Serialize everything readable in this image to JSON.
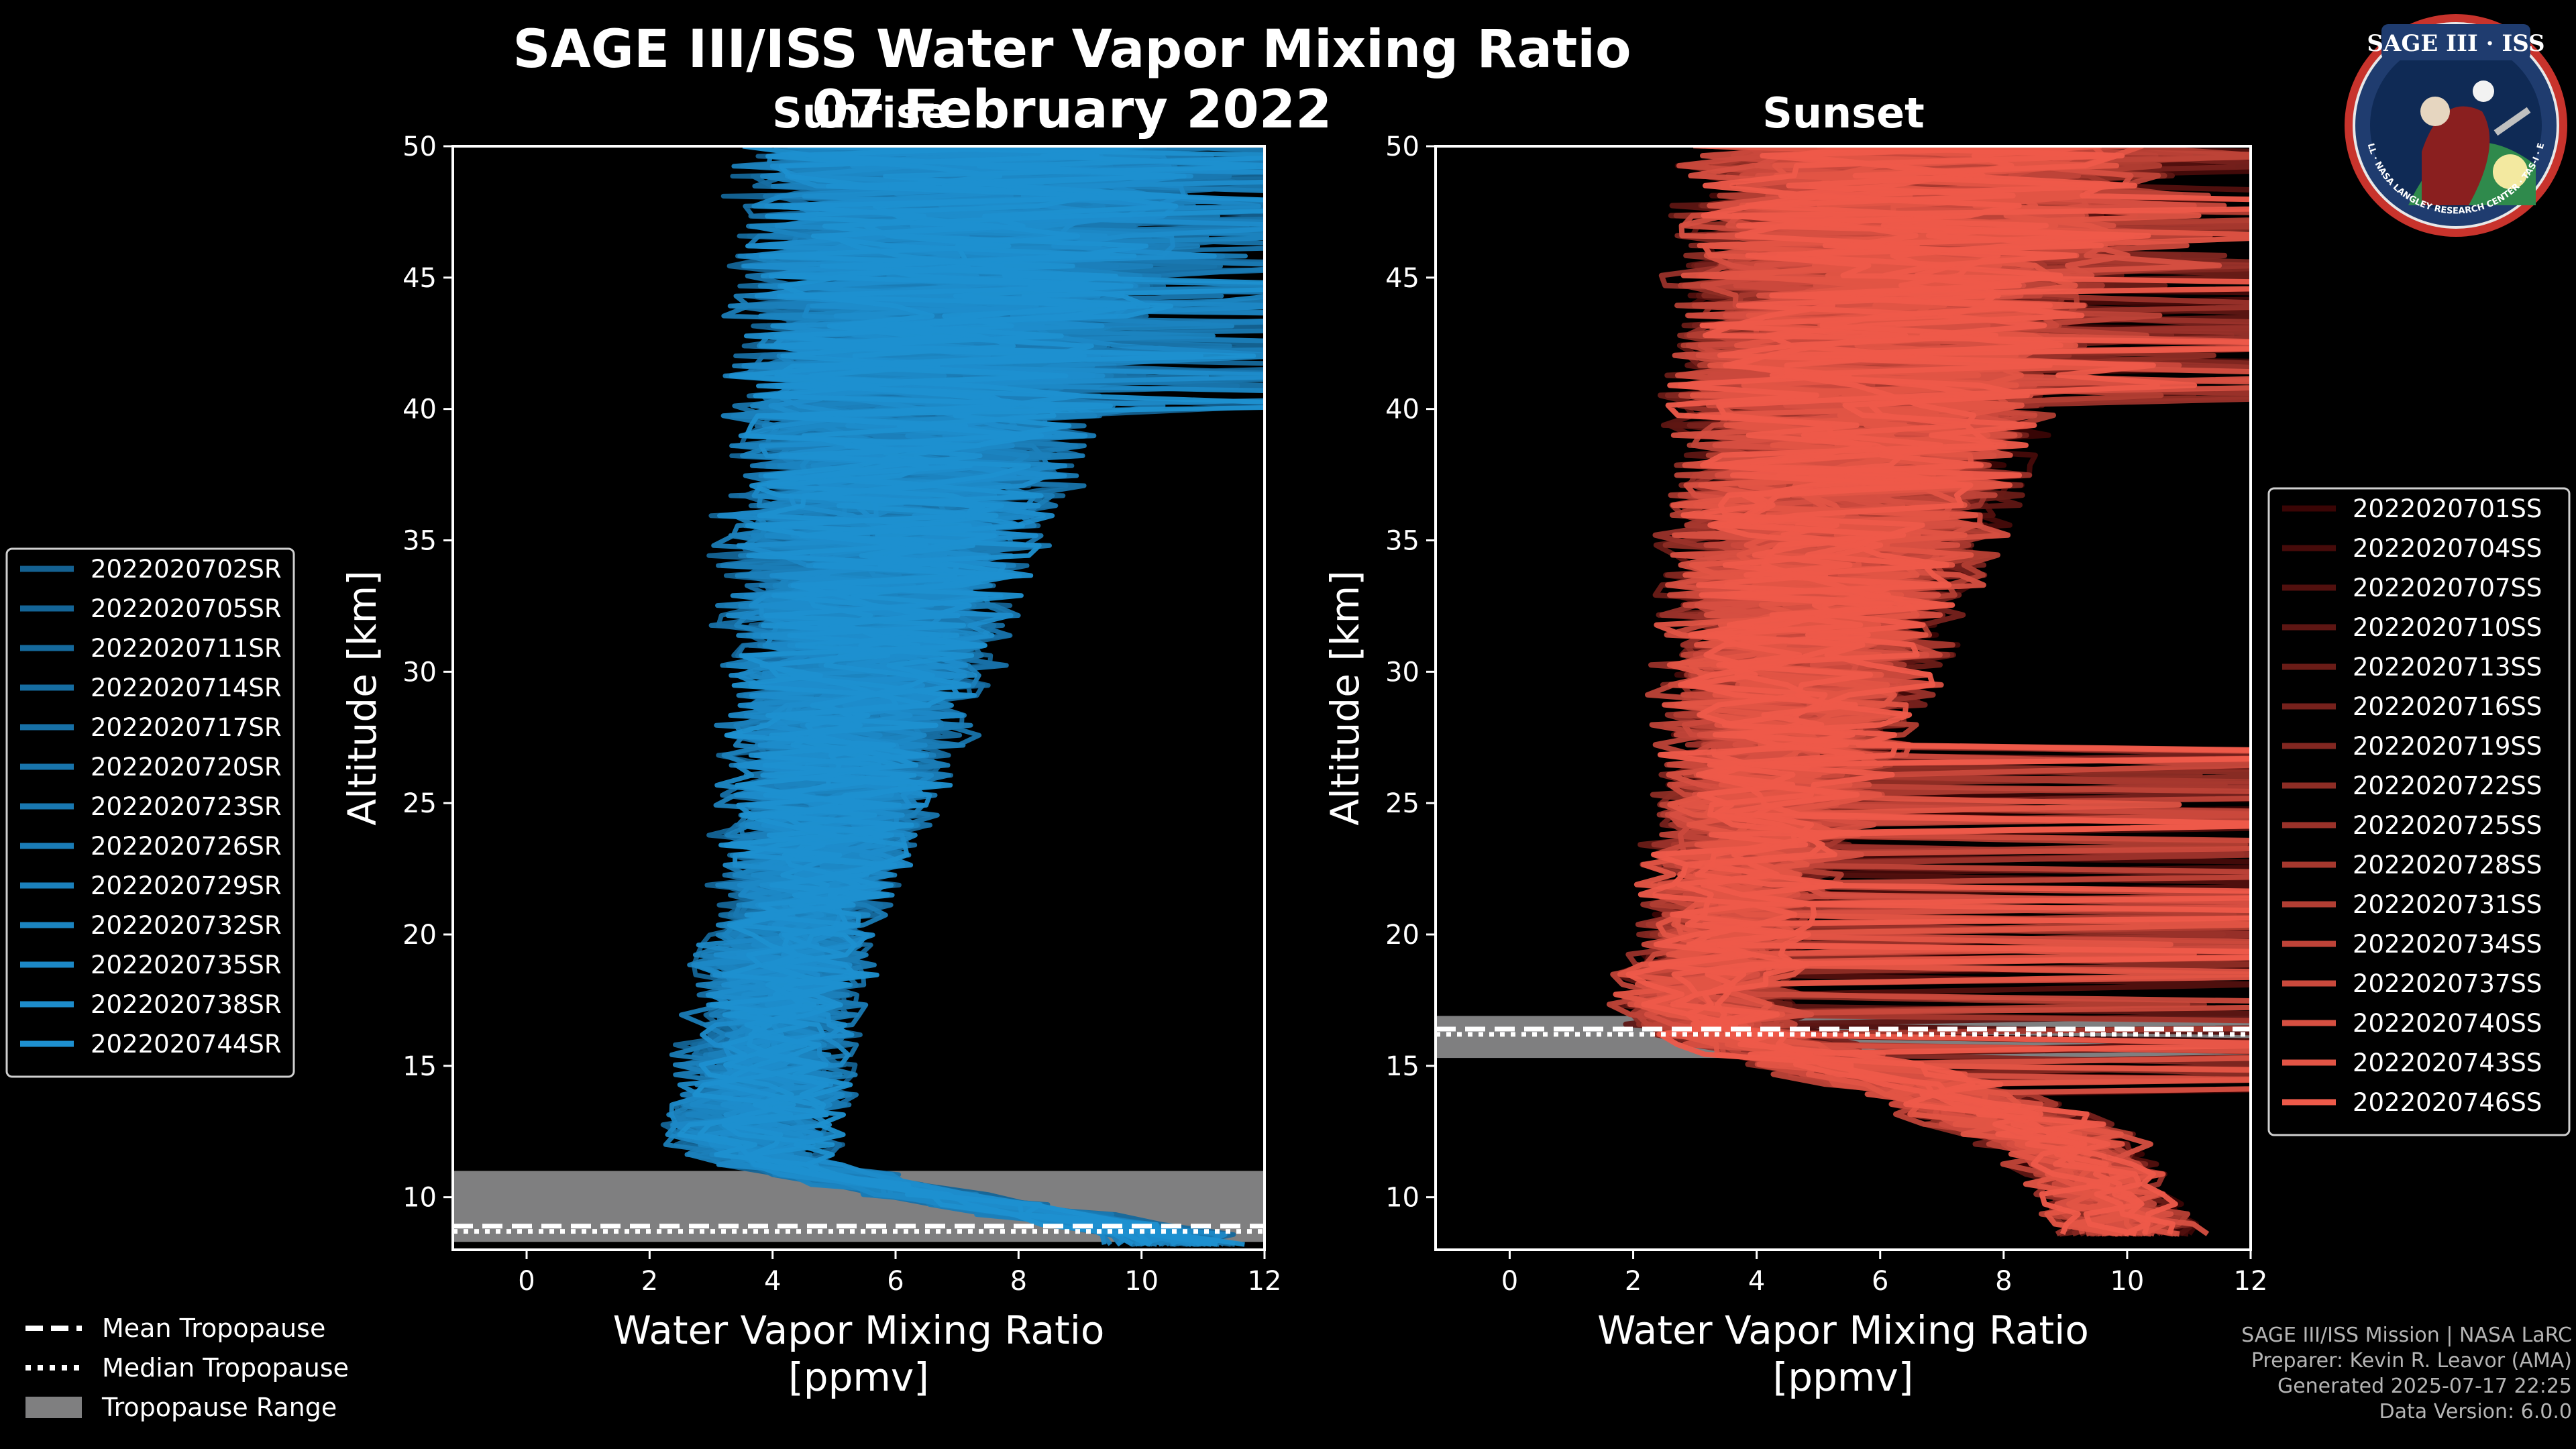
{
  "title": "SAGE III/ISS Water Vapor Mixing Ratio",
  "date": "07 February 2022",
  "colors": {
    "background": "#000000",
    "sunrise": "#1e90d0",
    "sunset_light": "#ee5a4a",
    "sunset_dark": "#3a0505",
    "tropopause_range": "#7f7f80"
  },
  "chart_data": [
    {
      "type": "line",
      "panel": "Sunrise",
      "title": "Sunrise",
      "xlabel": "Water Vapor Mixing Ratio\n[ppmv]",
      "ylabel": "Altitude [km]",
      "xlim": [
        -1.2,
        12
      ],
      "ylim": [
        8,
        50
      ],
      "xticks": [
        0,
        2,
        4,
        6,
        8,
        10,
        12
      ],
      "yticks": [
        10,
        15,
        20,
        25,
        30,
        35,
        40,
        45,
        50
      ],
      "legend_position": "left",
      "series": [
        {
          "name": "2022020702SR"
        },
        {
          "name": "2022020705SR"
        },
        {
          "name": "2022020711SR"
        },
        {
          "name": "2022020714SR"
        },
        {
          "name": "2022020717SR"
        },
        {
          "name": "2022020720SR"
        },
        {
          "name": "2022020723SR"
        },
        {
          "name": "2022020726SR"
        },
        {
          "name": "2022020729SR"
        },
        {
          "name": "2022020732SR"
        },
        {
          "name": "2022020735SR"
        },
        {
          "name": "2022020738SR"
        },
        {
          "name": "2022020744SR"
        }
      ],
      "median_profile": {
        "altitude": [
          8.5,
          9.5,
          10.5,
          11.5,
          12.5,
          13.5,
          15,
          17,
          20,
          23,
          26,
          29,
          32,
          35,
          38,
          41,
          44,
          47,
          50
        ],
        "value": [
          10.5,
          8.0,
          5.5,
          3.8,
          3.6,
          3.7,
          3.9,
          4.0,
          4.3,
          4.7,
          5.0,
          5.3,
          5.5,
          5.8,
          6.1,
          6.4,
          6.7,
          7.0,
          7.3
        ]
      },
      "tropopause": {
        "range": [
          8.3,
          11.0
        ],
        "mean": 8.9,
        "median": 8.7
      }
    },
    {
      "type": "line",
      "panel": "Sunset",
      "title": "Sunset",
      "xlabel": "Water Vapor Mixing Ratio\n[ppmv]",
      "ylabel": "Altitude [km]",
      "xlim": [
        -1.2,
        12
      ],
      "ylim": [
        8,
        50
      ],
      "xticks": [
        0,
        2,
        4,
        6,
        8,
        10,
        12
      ],
      "yticks": [
        10,
        15,
        20,
        25,
        30,
        35,
        40,
        45,
        50
      ],
      "legend_position": "right",
      "series": [
        {
          "name": "2022020701SS"
        },
        {
          "name": "2022020704SS"
        },
        {
          "name": "2022020707SS"
        },
        {
          "name": "2022020710SS"
        },
        {
          "name": "2022020713SS"
        },
        {
          "name": "2022020716SS"
        },
        {
          "name": "2022020719SS"
        },
        {
          "name": "2022020722SS"
        },
        {
          "name": "2022020725SS"
        },
        {
          "name": "2022020728SS"
        },
        {
          "name": "2022020731SS"
        },
        {
          "name": "2022020734SS"
        },
        {
          "name": "2022020737SS"
        },
        {
          "name": "2022020740SS"
        },
        {
          "name": "2022020743SS"
        },
        {
          "name": "2022020746SS"
        }
      ],
      "median_profile": {
        "altitude": [
          9,
          12,
          14,
          15.5,
          16.5,
          18,
          20,
          23,
          26,
          29,
          32,
          35,
          38,
          41,
          44,
          47,
          50
        ],
        "value": [
          10.0,
          9.0,
          7.0,
          4.5,
          3.3,
          3.2,
          3.5,
          3.9,
          4.3,
          4.6,
          4.9,
          5.2,
          5.5,
          5.8,
          6.1,
          6.4,
          6.7
        ]
      },
      "tropopause": {
        "range": [
          15.3,
          16.9
        ],
        "mean": 16.4,
        "median": 16.2
      }
    }
  ],
  "shared_legend": [
    {
      "label": "Mean Tropopause",
      "style": "dashed"
    },
    {
      "label": "Median Tropopause",
      "style": "dotted"
    },
    {
      "label": "Tropopause Range",
      "style": "patch"
    }
  ],
  "logo": {
    "name": "SAGE III · ISS",
    "ring_text": "BALL · NASA LANGLEY RESEARCH CENTER · TAS-I · ESA"
  },
  "footer": {
    "mission": "SAGE III/ISS Mission | NASA LaRC",
    "preparer": "Preparer: Kevin R. Leavor (AMA)",
    "generated": "Generated 2025-07-17 22:25",
    "data_version": "Data Version: 6.0.0"
  }
}
